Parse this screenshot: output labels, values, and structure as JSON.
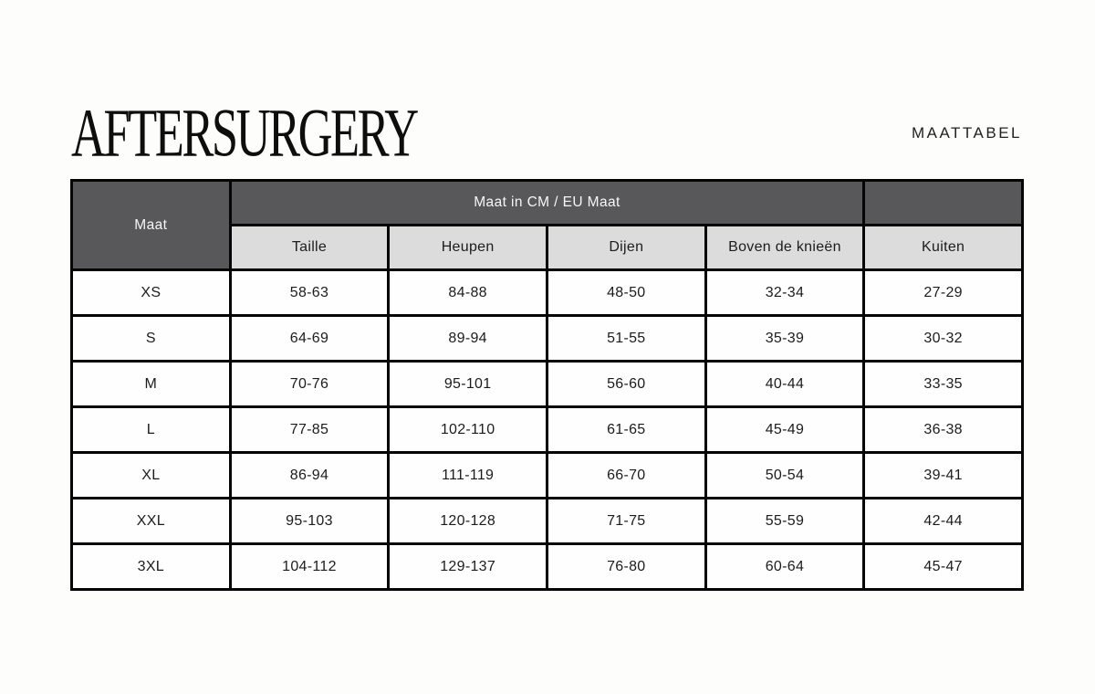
{
  "page": {
    "background": "#fdfdfc"
  },
  "header": {
    "logo": "AFTERSURGERY",
    "subtitle": "MAATTABEL"
  },
  "table": {
    "corner_header": "Maat",
    "group_header": "Maat in CM / EU Maat",
    "columns": [
      "Taille",
      "Heupen",
      "Dijen",
      "Boven de knieën",
      "Kuiten"
    ],
    "colors": {
      "header_dark": "#58585a",
      "header_light": "#dcdcdc",
      "border": "#050505",
      "text_dark": "#1c1c1c",
      "text_light": "#f6f6f6"
    },
    "rows": [
      {
        "maat": "XS",
        "values": [
          "58-63",
          "84-88",
          "48-50",
          "32-34",
          "27-29"
        ]
      },
      {
        "maat": "S",
        "values": [
          "64-69",
          "89-94",
          "51-55",
          "35-39",
          "30-32"
        ]
      },
      {
        "maat": "M",
        "values": [
          "70-76",
          "95-101",
          "56-60",
          "40-44",
          "33-35"
        ]
      },
      {
        "maat": "L",
        "values": [
          "77-85",
          "102-110",
          "61-65",
          "45-49",
          "36-38"
        ]
      },
      {
        "maat": "XL",
        "values": [
          "86-94",
          "111-119",
          "66-70",
          "50-54",
          "39-41"
        ]
      },
      {
        "maat": "XXL",
        "values": [
          "95-103",
          "120-128",
          "71-75",
          "55-59",
          "42-44"
        ]
      },
      {
        "maat": "3XL",
        "values": [
          "104-112",
          "129-137",
          "76-80",
          "60-64",
          "45-47"
        ]
      }
    ]
  }
}
